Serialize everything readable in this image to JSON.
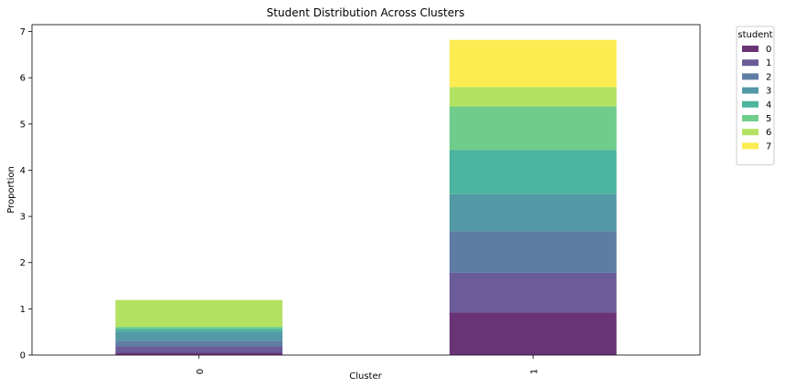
{
  "chart_data": {
    "type": "bar",
    "stacked": true,
    "title": "Student Distribution Across Clusters",
    "xlabel": "Cluster",
    "ylabel": "Proportion",
    "categories": [
      "0",
      "1"
    ],
    "ylim": [
      0,
      7.15
    ],
    "yticks": [
      "0",
      "1",
      "2",
      "3",
      "4",
      "5",
      "6",
      "7"
    ],
    "legend": {
      "title": "student",
      "placement": "outside-top-right"
    },
    "series": [
      {
        "name": "0",
        "color": "#440154",
        "values": [
          0.05,
          0.92
        ]
      },
      {
        "name": "1",
        "color": "#46327e",
        "values": [
          0.14,
          0.86
        ]
      },
      {
        "name": "2",
        "color": "#365c8d",
        "values": [
          0.12,
          0.9
        ]
      },
      {
        "name": "3",
        "color": "#277f8e",
        "values": [
          0.2,
          0.8
        ]
      },
      {
        "name": "4",
        "color": "#1fa187",
        "values": [
          0.06,
          0.96
        ]
      },
      {
        "name": "5",
        "color": "#4ac16d",
        "values": [
          0.04,
          0.94
        ]
      },
      {
        "name": "6",
        "color": "#a0da39",
        "values": [
          0.58,
          0.42
        ]
      },
      {
        "name": "7",
        "color": "#fde725",
        "values": [
          0.0,
          1.02
        ]
      }
    ]
  }
}
